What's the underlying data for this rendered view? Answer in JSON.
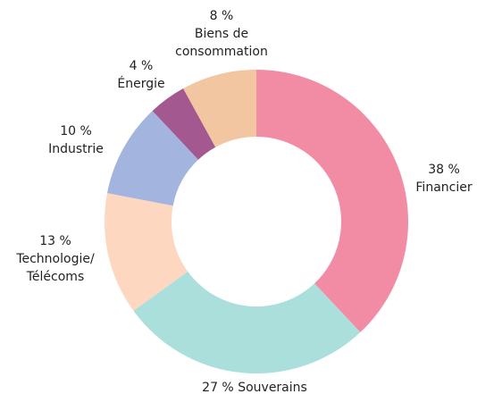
{
  "chart_data": {
    "type": "donut",
    "categories": [
      "Financier",
      "Souverains",
      "Technologie/ Télécoms",
      "Industrie",
      "Énergie",
      "Biens de consommation"
    ],
    "values": [
      38,
      27,
      13,
      10,
      4,
      8
    ],
    "value_labels": [
      "38 %",
      "27 %",
      "13 %",
      "10 %",
      "4 %",
      "8 %"
    ],
    "colors": [
      "#f28ca5",
      "#abdfdc",
      "#fdd7c0",
      "#a3b5df",
      "#a3588f",
      "#f1c6a0"
    ]
  }
}
